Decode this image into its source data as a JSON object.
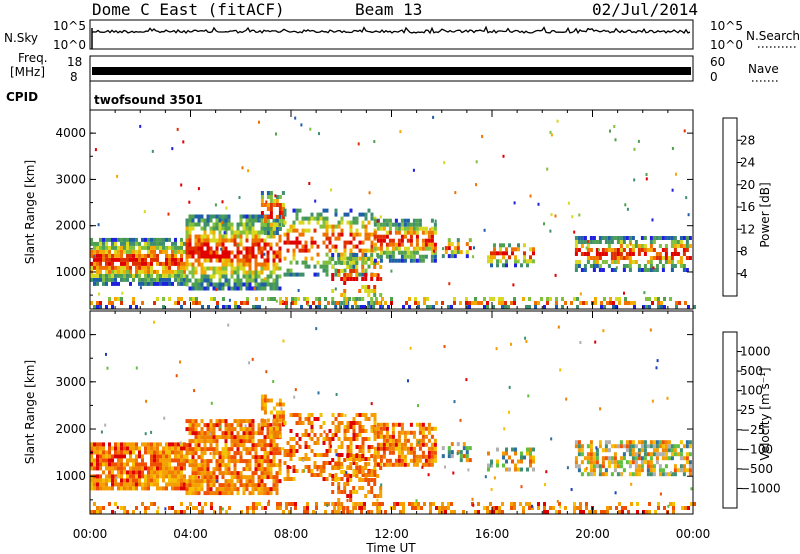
{
  "header": {
    "station": "Dome C East (fitACF)",
    "beam": "Beam 13",
    "date": "02/Jul/2014"
  },
  "strips": {
    "nsky": {
      "label": "N.Sky",
      "tick_top": "10^5",
      "tick_bottom": "10^0"
    },
    "nsearch": {
      "label": "N.Search",
      "tick_top": "10^5",
      "tick_bottom": "10^0"
    },
    "freq": {
      "label_line1": "Freq.",
      "label_line2": "[MHz]",
      "tick_top": "18",
      "tick_bottom": "8"
    },
    "nave": {
      "label": "Nave",
      "tick_top": "60",
      "tick_bottom": "0"
    },
    "cpid": {
      "label": "CPID",
      "value": "twofsound 3501"
    }
  },
  "chart_data": [
    {
      "type": "heatmap",
      "name": "power",
      "ylabel": "Slant Range [km]",
      "xlabel": "",
      "ylim": [
        200,
        4500
      ],
      "yticks": [
        "1000",
        "2000",
        "3000",
        "4000"
      ],
      "xticks": [
        "00:00",
        "04:00",
        "08:00",
        "12:00",
        "16:00",
        "20:00",
        "00:00"
      ],
      "xlim_hours": [
        0,
        24
      ],
      "colorbar": {
        "label": "Power [dB]",
        "ticks": [
          "4",
          "8",
          "12",
          "16",
          "20",
          "24",
          "28"
        ],
        "colors": [
          "#1f1fe0",
          "#1f5fa8",
          "#3f8f6f",
          "#4fa050",
          "#7fc03f",
          "#d8d820",
          "#f5a800",
          "#f07000",
          "#e03000",
          "#e00000"
        ]
      }
    },
    {
      "type": "heatmap",
      "name": "velocity",
      "ylabel": "Slant Range [km]",
      "xlabel": "Time UT",
      "ylim": [
        200,
        4500
      ],
      "yticks": [
        "1000",
        "2000",
        "3000",
        "4000"
      ],
      "xticks": [
        "00:00",
        "04:00",
        "08:00",
        "12:00",
        "16:00",
        "20:00",
        "00:00"
      ],
      "xlim_hours": [
        0,
        24
      ],
      "colorbar": {
        "label": "Velocity [m s⁻¹]",
        "ticks": [
          "1000",
          "500",
          "100",
          "25",
          "−25",
          "−100",
          "−500",
          "−1000"
        ],
        "colors": [
          "#1f3fc0",
          "#2f6fa0",
          "#3f9070",
          "#5fc03f",
          "#b0b0b0",
          "#f5c000",
          "#f5a000",
          "#f08000",
          "#f05000",
          "#e00000"
        ]
      }
    }
  ]
}
